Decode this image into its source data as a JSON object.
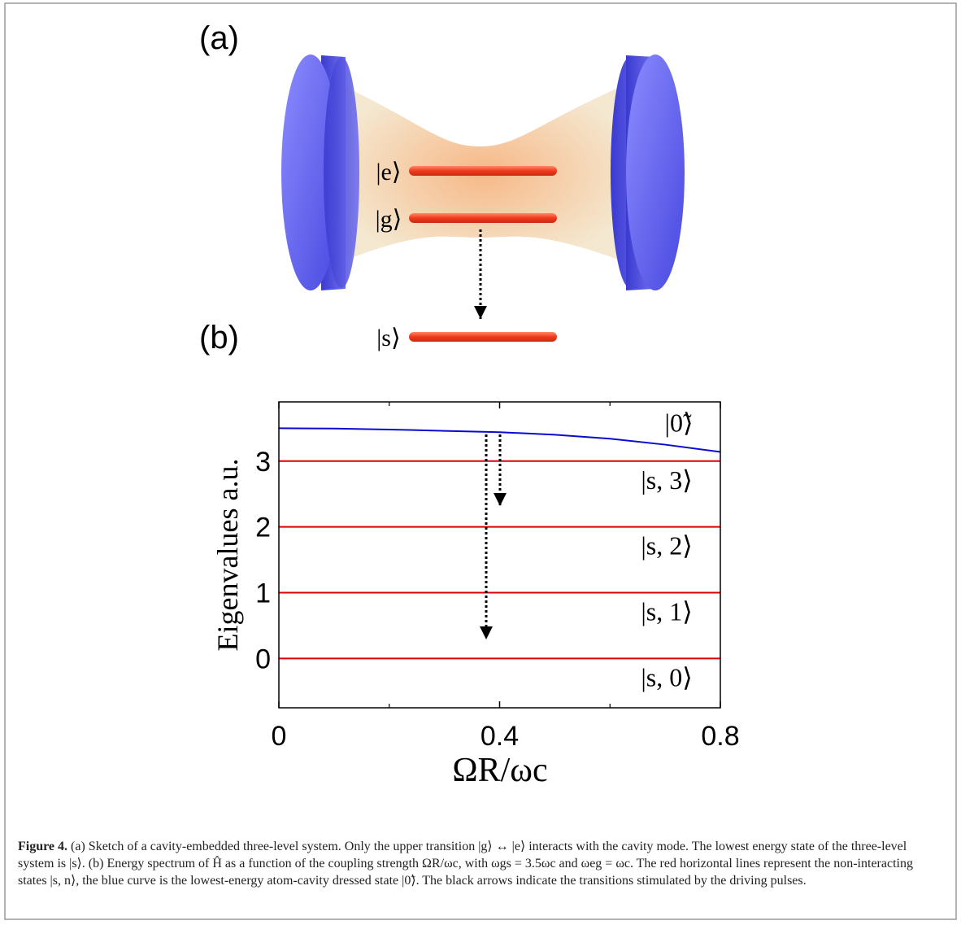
{
  "panels": {
    "a": {
      "label": "(a)",
      "states": [
        "|e⟩",
        "|g⟩",
        "|s⟩"
      ]
    },
    "b": {
      "label": "(b)"
    }
  },
  "chart_data": {
    "type": "line",
    "x_label": "ΩR/ωc",
    "y_label": "Eigenvalues a.u.",
    "xlim": [
      0,
      0.8
    ],
    "ylim": [
      -0.75,
      3.9
    ],
    "xticks": [
      0,
      0.4,
      0.8
    ],
    "xminor_ticks": [
      0.2,
      0.6
    ],
    "yticks": [
      0,
      1,
      2,
      3
    ],
    "series": [
      {
        "name": "|0̃⟩",
        "color": "#0a0ad0",
        "x": [
          0,
          0.1,
          0.2,
          0.3,
          0.4,
          0.5,
          0.6,
          0.7,
          0.8
        ],
        "values": [
          3.5,
          3.495,
          3.48,
          3.46,
          3.44,
          3.4,
          3.34,
          3.25,
          3.14
        ]
      }
    ],
    "levels": {
      "color": "#dd0000",
      "values": [
        0,
        1,
        2,
        3
      ],
      "labels": [
        "|s, 0⟩",
        "|s, 1⟩",
        "|s, 2⟩",
        "|s, 3⟩"
      ]
    }
  },
  "caption": {
    "label": "Figure 4.",
    "text": "(a) Sketch of a cavity-embedded three-level system. Only the upper transition |g⟩ ↔ |e⟩ interacts with the cavity mode. The lowest energy state of the three-level system is |s⟩. (b) Energy spectrum of Ĥ as a function of the coupling strength ΩR/ωc, with ωgs = 3.5ωc and ωeg = ωc. The red horizontal lines represent the non-interacting states |s, n⟩, the blue curve is the lowest-energy atom-cavity dressed state |0̃⟩. The black arrows indicate the transitions stimulated by the driving pulses."
  }
}
